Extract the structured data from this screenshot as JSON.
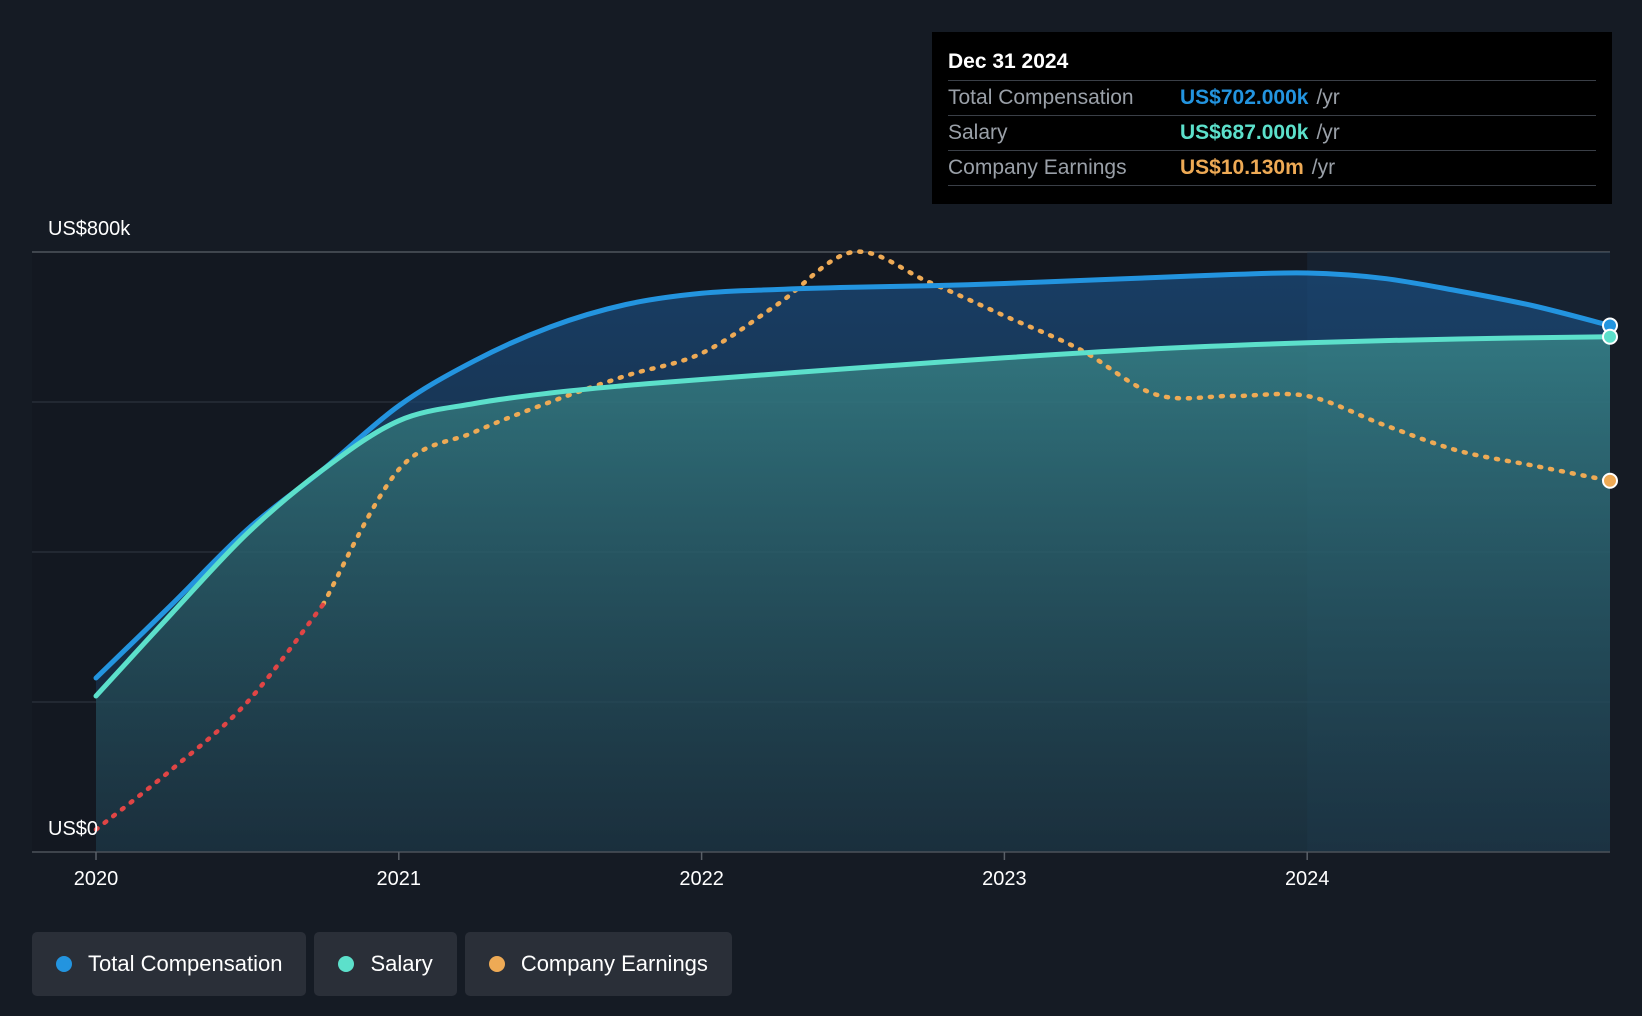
{
  "chart_data": {
    "type": "area",
    "title": "",
    "x_axis": {
      "ticks": [
        "2020",
        "2021",
        "2022",
        "2023",
        "2024"
      ],
      "range": [
        2020.0,
        2025.0
      ]
    },
    "y_axis": {
      "label_top": "US$800k",
      "label_bottom": "US$0",
      "range": [
        0,
        800
      ]
    },
    "series": [
      {
        "name": "Total Compensation",
        "color": "#2394df",
        "style": "solid-area",
        "points": [
          [
            2020.0,
            232
          ],
          [
            2020.25,
            330
          ],
          [
            2020.5,
            430
          ],
          [
            2020.75,
            510
          ],
          [
            2021.0,
            595
          ],
          [
            2021.25,
            655
          ],
          [
            2021.5,
            700
          ],
          [
            2021.75,
            730
          ],
          [
            2022.0,
            745
          ],
          [
            2022.25,
            750
          ],
          [
            2022.5,
            753
          ],
          [
            2022.75,
            755
          ],
          [
            2023.0,
            758
          ],
          [
            2023.25,
            762
          ],
          [
            2023.5,
            766
          ],
          [
            2023.75,
            770
          ],
          [
            2024.0,
            772
          ],
          [
            2024.25,
            765
          ],
          [
            2024.5,
            748
          ],
          [
            2024.75,
            728
          ],
          [
            2025.0,
            702
          ]
        ]
      },
      {
        "name": "Salary",
        "color": "#5ce0cb",
        "style": "solid-area",
        "points": [
          [
            2020.0,
            208
          ],
          [
            2020.25,
            318
          ],
          [
            2020.5,
            425
          ],
          [
            2020.75,
            510
          ],
          [
            2021.0,
            575
          ],
          [
            2021.25,
            598
          ],
          [
            2021.5,
            612
          ],
          [
            2021.75,
            622
          ],
          [
            2022.0,
            630
          ],
          [
            2022.5,
            645
          ],
          [
            2023.0,
            659
          ],
          [
            2023.5,
            671
          ],
          [
            2024.0,
            679
          ],
          [
            2024.5,
            684
          ],
          [
            2025.0,
            687
          ]
        ]
      },
      {
        "name": "Company Earnings",
        "color": "#eeaa55",
        "negative_color": "#e04545",
        "style": "dotted",
        "points": [
          [
            2020.0,
            30
          ],
          [
            2020.25,
            110
          ],
          [
            2020.5,
            200
          ],
          [
            2020.75,
            330
          ],
          [
            2021.0,
            510
          ],
          [
            2021.25,
            560
          ],
          [
            2021.5,
            600
          ],
          [
            2021.75,
            635
          ],
          [
            2022.0,
            665
          ],
          [
            2022.25,
            730
          ],
          [
            2022.5,
            800
          ],
          [
            2022.75,
            760
          ],
          [
            2023.0,
            715
          ],
          [
            2023.25,
            670
          ],
          [
            2023.5,
            610
          ],
          [
            2023.75,
            608
          ],
          [
            2024.0,
            608
          ],
          [
            2024.25,
            570
          ],
          [
            2024.5,
            535
          ],
          [
            2024.75,
            515
          ],
          [
            2025.0,
            495
          ]
        ]
      }
    ],
    "highlight_x": 2024.0,
    "legend_position": "bottom-left"
  },
  "tooltip": {
    "date": "Dec 31 2024",
    "rows": [
      {
        "label": "Total Compensation",
        "value": "US$702.000k",
        "unit": "/yr",
        "color": "#2394df"
      },
      {
        "label": "Salary",
        "value": "US$687.000k",
        "unit": "/yr",
        "color": "#5ce0cb"
      },
      {
        "label": "Company Earnings",
        "value": "US$10.130m",
        "unit": "/yr",
        "color": "#eeaa55"
      }
    ]
  },
  "legend": [
    {
      "label": "Total Compensation",
      "color": "#2394df"
    },
    {
      "label": "Salary",
      "color": "#5ce0cb"
    },
    {
      "label": "Company Earnings",
      "color": "#eeaa55"
    }
  ]
}
